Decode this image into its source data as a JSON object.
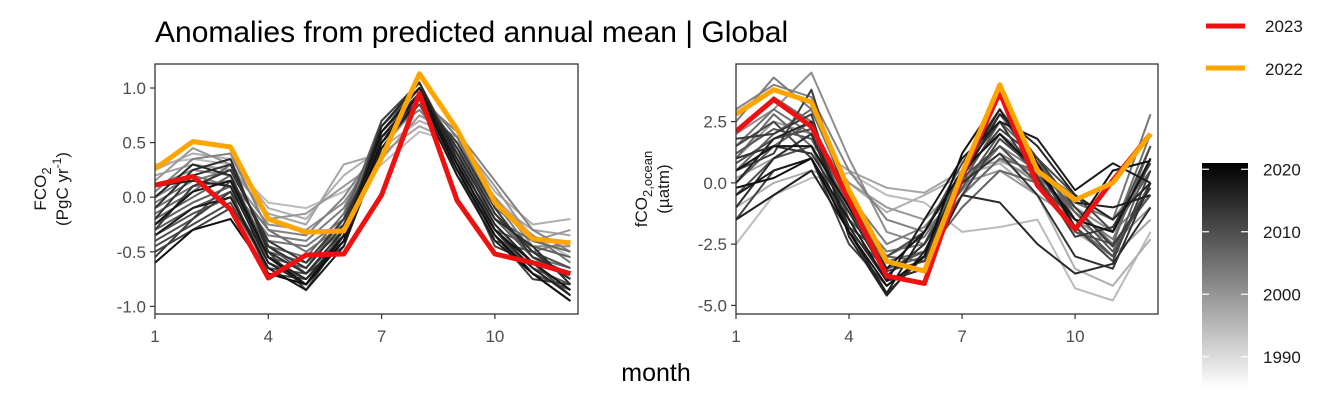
{
  "title": "Anomalies from predicted annual mean | Global",
  "xlabel": "month",
  "legend": {
    "highlight": [
      {
        "label": "2023",
        "color": "#ee1111"
      },
      {
        "label": "2022",
        "color": "#ffa500"
      }
    ],
    "colorbar": {
      "ticks": [
        "2020",
        "2010",
        "2000",
        "1990"
      ],
      "min": 1985,
      "max": 2021,
      "low_color": "#ffffff",
      "high_color": "#000000"
    }
  },
  "chart_data": [
    {
      "type": "line",
      "panel": "left",
      "ylabel_line1": "FCO",
      "ylabel_sub": "2",
      "ylabel_line2_pre": "(PgC yr",
      "ylabel_line2_sup": "-1",
      "ylabel_line2_post": ")",
      "x": [
        1,
        2,
        3,
        4,
        5,
        6,
        7,
        8,
        9,
        10,
        11,
        12
      ],
      "xlim": [
        1,
        12.2
      ],
      "ylim": [
        -1.07,
        1.22
      ],
      "xticks": [
        1,
        4,
        7,
        10
      ],
      "xtick_labels": [
        "1",
        "4",
        "7",
        "10"
      ],
      "yticks": [
        -1.0,
        -0.5,
        0.0,
        0.5,
        1.0
      ],
      "ytick_labels": [
        "-1.0",
        "-0.5",
        "0.0",
        "0.5",
        "1.0"
      ],
      "series": [
        {
          "year": 1990,
          "values": [
            0.3,
            0.35,
            0.3,
            -0.05,
            -0.1,
            0.05,
            0.3,
            0.6,
            0.5,
            0.0,
            -0.35,
            -0.55
          ]
        },
        {
          "year": 1992,
          "values": [
            0.25,
            0.4,
            0.35,
            -0.1,
            -0.2,
            0.2,
            0.45,
            0.7,
            0.55,
            0.05,
            -0.25,
            -0.2
          ]
        },
        {
          "year": 1994,
          "values": [
            0.2,
            0.3,
            0.25,
            -0.15,
            -0.25,
            0.3,
            0.4,
            0.65,
            0.5,
            -0.05,
            -0.3,
            -0.35
          ]
        },
        {
          "year": 1996,
          "values": [
            0.15,
            0.45,
            0.3,
            -0.2,
            -0.15,
            0.1,
            0.35,
            0.75,
            0.55,
            0.1,
            -0.4,
            -0.3
          ]
        },
        {
          "year": 1998,
          "values": [
            0.1,
            0.25,
            0.2,
            -0.25,
            -0.3,
            -0.05,
            0.45,
            0.85,
            0.45,
            0.0,
            -0.45,
            -0.45
          ]
        },
        {
          "year": 2000,
          "values": [
            0.05,
            0.35,
            0.4,
            -0.3,
            -0.35,
            0.0,
            0.5,
            0.9,
            0.6,
            0.15,
            -0.3,
            -0.5
          ]
        },
        {
          "year": 2001,
          "values": [
            0.0,
            0.2,
            0.1,
            -0.35,
            -0.4,
            -0.1,
            0.55,
            0.8,
            0.4,
            -0.05,
            -0.5,
            -0.4
          ]
        },
        {
          "year": 2002,
          "values": [
            -0.05,
            0.15,
            0.25,
            -0.4,
            -0.45,
            -0.2,
            0.6,
            0.95,
            0.55,
            -0.1,
            -0.35,
            -0.6
          ]
        },
        {
          "year": 2003,
          "values": [
            -0.1,
            0.1,
            0.15,
            -0.3,
            -0.5,
            -0.25,
            0.5,
            0.85,
            0.5,
            -0.15,
            -0.55,
            -0.65
          ]
        },
        {
          "year": 2004,
          "values": [
            -0.15,
            0.05,
            0.3,
            -0.45,
            -0.55,
            -0.15,
            0.65,
            1.0,
            0.45,
            -0.2,
            -0.4,
            -0.5
          ]
        },
        {
          "year": 2005,
          "values": [
            -0.2,
            0.0,
            0.2,
            -0.5,
            -0.6,
            -0.3,
            0.55,
            0.9,
            0.35,
            -0.25,
            -0.6,
            -0.7
          ]
        },
        {
          "year": 2006,
          "values": [
            -0.25,
            -0.05,
            0.1,
            -0.55,
            -0.65,
            -0.2,
            0.7,
            1.05,
            0.4,
            -0.3,
            -0.45,
            -0.55
          ]
        },
        {
          "year": 2007,
          "values": [
            -0.3,
            -0.1,
            0.05,
            -0.45,
            -0.7,
            -0.35,
            0.6,
            0.95,
            0.3,
            -0.2,
            -0.55,
            -0.75
          ]
        },
        {
          "year": 2008,
          "values": [
            -0.35,
            -0.15,
            0.0,
            -0.6,
            -0.75,
            -0.4,
            0.5,
            0.85,
            0.25,
            -0.35,
            -0.65,
            -0.8
          ]
        },
        {
          "year": 2009,
          "values": [
            -0.4,
            -0.2,
            0.15,
            -0.55,
            -0.8,
            -0.3,
            0.65,
            1.0,
            0.35,
            -0.4,
            -0.5,
            -0.65
          ]
        },
        {
          "year": 2010,
          "values": [
            -0.45,
            -0.25,
            -0.05,
            -0.65,
            -0.7,
            -0.45,
            0.55,
            0.9,
            0.2,
            -0.3,
            -0.7,
            -0.85
          ]
        },
        {
          "year": 2011,
          "values": [
            -0.5,
            -0.3,
            -0.1,
            -0.5,
            -0.85,
            -0.35,
            0.7,
            1.05,
            0.3,
            -0.45,
            -0.6,
            -0.9
          ]
        },
        {
          "year": 2012,
          "values": [
            -0.55,
            -0.2,
            0.05,
            -0.7,
            -0.75,
            -0.4,
            0.6,
            0.95,
            0.25,
            -0.35,
            -0.75,
            -0.8
          ]
        },
        {
          "year": 2013,
          "values": [
            -0.3,
            0.1,
            0.25,
            -0.4,
            -0.6,
            -0.2,
            0.5,
            0.9,
            0.5,
            -0.1,
            -0.55,
            -0.7
          ]
        },
        {
          "year": 2014,
          "values": [
            -0.2,
            0.2,
            0.3,
            -0.45,
            -0.65,
            -0.25,
            0.55,
            0.95,
            0.45,
            -0.15,
            -0.5,
            -0.75
          ]
        },
        {
          "year": 2015,
          "values": [
            -0.1,
            0.25,
            0.35,
            -0.5,
            -0.7,
            -0.3,
            0.6,
            1.0,
            0.4,
            -0.2,
            -0.45,
            -0.8
          ]
        },
        {
          "year": 2016,
          "values": [
            0.0,
            0.3,
            0.2,
            -0.55,
            -0.75,
            -0.35,
            0.65,
            1.05,
            0.35,
            -0.25,
            -0.6,
            -0.85
          ]
        },
        {
          "year": 2017,
          "values": [
            0.1,
            0.15,
            0.1,
            -0.6,
            -0.8,
            -0.4,
            0.55,
            0.95,
            0.3,
            -0.3,
            -0.65,
            -0.9
          ]
        },
        {
          "year": 2018,
          "values": [
            -0.35,
            -0.1,
            0.0,
            -0.65,
            -0.85,
            -0.45,
            0.45,
            0.9,
            0.2,
            -0.4,
            -0.7,
            -0.95
          ]
        },
        {
          "year": 2019,
          "values": [
            -0.25,
            0.05,
            0.15,
            -0.55,
            -0.8,
            -0.35,
            0.6,
            1.0,
            0.3,
            -0.3,
            -0.6,
            -0.85
          ]
        },
        {
          "year": 2020,
          "values": [
            -0.6,
            -0.3,
            -0.2,
            -0.7,
            -0.8,
            -0.4,
            0.5,
            0.95,
            0.25,
            -0.35,
            -0.7,
            -0.95
          ]
        },
        {
          "year": 2022,
          "name": "2022",
          "highlight": true,
          "color": "#ffa500",
          "values": [
            0.26,
            0.51,
            0.46,
            -0.2,
            -0.32,
            -0.31,
            0.36,
            1.13,
            0.62,
            -0.05,
            -0.38,
            -0.42
          ]
        },
        {
          "year": 2023,
          "name": "2023",
          "highlight": true,
          "color": "#ee1111",
          "values": [
            0.11,
            0.19,
            -0.11,
            -0.74,
            -0.53,
            -0.52,
            0.02,
            0.95,
            -0.03,
            -0.52,
            -0.6,
            -0.7
          ]
        }
      ]
    },
    {
      "type": "line",
      "panel": "right",
      "ylabel_line1": "fCO",
      "ylabel_sub": "2,ocean",
      "ylabel_line2_pre": "(µatm)",
      "ylabel_line2_sup": "",
      "ylabel_line2_post": "",
      "x": [
        1,
        2,
        3,
        4,
        5,
        6,
        7,
        8,
        9,
        10,
        11,
        12
      ],
      "xlim": [
        1,
        12.2
      ],
      "ylim": [
        -5.35,
        4.85
      ],
      "xticks": [
        1,
        4,
        7,
        10
      ],
      "xtick_labels": [
        "1",
        "4",
        "7",
        "10"
      ],
      "yticks": [
        -5.0,
        -2.5,
        0.0,
        2.5
      ],
      "ytick_labels": [
        "-5.0",
        "-2.5",
        "0.0",
        "2.5"
      ],
      "series": [
        {
          "year": 1990,
          "values": [
            -2.5,
            -0.5,
            0.2,
            0.4,
            -0.5,
            -0.8,
            -2.0,
            -1.8,
            -1.5,
            -4.3,
            -4.8,
            -2.0
          ]
        },
        {
          "year": 1992,
          "values": [
            -1.0,
            0.0,
            0.5,
            0.0,
            -1.2,
            -0.5,
            0.3,
            0.8,
            -0.5,
            -3.5,
            -4.2,
            -2.3
          ]
        },
        {
          "year": 1994,
          "values": [
            0.2,
            1.0,
            1.5,
            0.5,
            -0.2,
            -0.4,
            0.5,
            0.9,
            0.2,
            -2.0,
            -3.0,
            -1.5
          ]
        },
        {
          "year": 1996,
          "values": [
            1.0,
            2.5,
            2.0,
            0.0,
            -1.0,
            -1.5,
            0.0,
            0.5,
            -0.5,
            -1.5,
            -2.5,
            -1.0
          ]
        },
        {
          "year": 1998,
          "values": [
            2.0,
            3.0,
            4.5,
            1.0,
            -2.0,
            -2.5,
            -0.5,
            1.0,
            0.0,
            -1.0,
            -2.0,
            -0.5
          ]
        },
        {
          "year": 2000,
          "values": [
            3.0,
            4.0,
            3.5,
            0.5,
            -1.5,
            -2.0,
            -0.3,
            1.5,
            0.5,
            -0.5,
            -1.5,
            0.5
          ]
        },
        {
          "year": 2001,
          "values": [
            2.5,
            4.3,
            3.0,
            -0.5,
            -2.5,
            -1.8,
            0.0,
            1.2,
            0.3,
            -1.2,
            -2.3,
            1.0
          ]
        },
        {
          "year": 2002,
          "values": [
            2.0,
            3.5,
            2.5,
            -1.0,
            -2.8,
            -2.5,
            0.5,
            2.0,
            0.8,
            -0.8,
            -1.5,
            2.8
          ]
        },
        {
          "year": 2003,
          "values": [
            1.5,
            3.0,
            2.0,
            -0.8,
            -3.0,
            -2.2,
            0.0,
            1.5,
            0.0,
            -1.5,
            -2.0,
            2.0
          ]
        },
        {
          "year": 2004,
          "values": [
            1.0,
            2.8,
            1.5,
            -1.2,
            -3.2,
            -2.8,
            -0.5,
            1.0,
            0.5,
            -1.0,
            -2.5,
            1.5
          ]
        },
        {
          "year": 2005,
          "values": [
            0.5,
            2.0,
            3.0,
            -0.5,
            -3.5,
            -3.0,
            -1.0,
            0.5,
            0.0,
            -1.8,
            -3.0,
            1.0
          ]
        },
        {
          "year": 2006,
          "values": [
            0.0,
            1.5,
            2.5,
            -1.5,
            -3.0,
            -3.2,
            0.0,
            2.5,
            1.0,
            -1.5,
            -2.0,
            0.5
          ]
        },
        {
          "year": 2007,
          "values": [
            1.2,
            2.2,
            1.8,
            -1.0,
            -3.8,
            -2.5,
            0.5,
            2.8,
            0.8,
            -1.2,
            -2.8,
            0.0
          ]
        },
        {
          "year": 2008,
          "values": [
            -0.5,
            1.0,
            1.5,
            -2.0,
            -3.5,
            -2.8,
            -0.2,
            2.0,
            0.3,
            -2.0,
            -2.5,
            -0.5
          ]
        },
        {
          "year": 2009,
          "values": [
            0.8,
            1.8,
            2.2,
            -1.5,
            -4.0,
            -3.5,
            0.2,
            1.5,
            0.0,
            -1.5,
            -3.0,
            0.0
          ]
        },
        {
          "year": 2010,
          "values": [
            1.5,
            2.5,
            1.0,
            -1.8,
            -3.0,
            -2.0,
            0.8,
            3.0,
            1.0,
            -0.5,
            -2.0,
            1.5
          ]
        },
        {
          "year": 2011,
          "values": [
            -1.5,
            0.5,
            1.0,
            -2.5,
            -4.2,
            -3.0,
            -0.5,
            1.8,
            0.5,
            -1.8,
            -3.2,
            0.5
          ]
        },
        {
          "year": 2012,
          "values": [
            0.5,
            1.2,
            3.8,
            -1.0,
            -3.6,
            -3.2,
            0.3,
            2.2,
            1.0,
            -1.0,
            -2.6,
            -0.2
          ]
        },
        {
          "year": 2013,
          "values": [
            1.8,
            2.0,
            2.8,
            -2.0,
            -4.5,
            -3.0,
            0.5,
            2.5,
            0.2,
            -2.2,
            -1.8,
            0.8
          ]
        },
        {
          "year": 2014,
          "values": [
            1.0,
            1.5,
            1.2,
            -1.2,
            -3.8,
            -2.5,
            0.0,
            1.2,
            -0.5,
            -3.0,
            -3.5,
            0.0
          ]
        },
        {
          "year": 2015,
          "values": [
            -1.0,
            1.0,
            2.0,
            -1.8,
            -4.0,
            -3.5,
            -0.5,
            -0.8,
            -2.5,
            -3.7,
            -3.3,
            -1.0
          ]
        },
        {
          "year": 2016,
          "values": [
            0.0,
            1.8,
            2.5,
            -2.2,
            -4.6,
            -2.8,
            0.2,
            2.8,
            1.5,
            -0.5,
            -1.5,
            0.0
          ]
        },
        {
          "year": 2017,
          "values": [
            -1.5,
            -0.5,
            0.5,
            -2.0,
            -4.5,
            -2.0,
            0.5,
            3.0,
            0.5,
            -0.8,
            -1.0,
            -0.5
          ]
        },
        {
          "year": 2018,
          "values": [
            -0.5,
            0.5,
            1.0,
            -1.5,
            -4.0,
            -1.5,
            1.0,
            2.5,
            1.8,
            -0.3,
            0.8,
            0.0
          ]
        },
        {
          "year": 2019,
          "values": [
            0.5,
            1.5,
            1.5,
            -1.0,
            -3.5,
            -2.0,
            0.5,
            2.0,
            0.5,
            -1.5,
            -2.0,
            1.0
          ]
        },
        {
          "year": 2020,
          "values": [
            -0.2,
            0.2,
            1.0,
            -2.0,
            -4.2,
            -3.0,
            1.2,
            3.5,
            0.8,
            -1.8,
            0.5,
            0.9
          ]
        },
        {
          "year": 2022,
          "name": "2022",
          "highlight": true,
          "color": "#ffa500",
          "values": [
            2.8,
            3.8,
            3.3,
            -0.3,
            -3.2,
            -3.6,
            0.4,
            4.0,
            0.5,
            -0.7,
            0.0,
            2.0
          ]
        },
        {
          "year": 2023,
          "name": "2023",
          "highlight": true,
          "color": "#ee1111",
          "values": [
            2.1,
            3.4,
            2.3,
            -0.7,
            -3.8,
            -4.1,
            0.3,
            3.7,
            -0.1,
            -1.9,
            0.1,
            2.0
          ]
        }
      ]
    }
  ]
}
